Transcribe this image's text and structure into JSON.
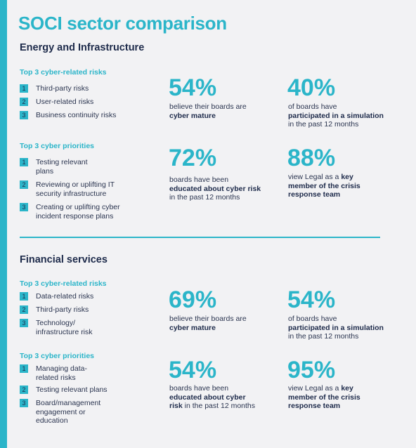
{
  "title": "SOCI sector comparison",
  "sections": [
    {
      "name": "Energy and Infrastructure",
      "risks_heading": "Top 3 cyber-related risks",
      "risks": [
        {
          "num": "1",
          "text": "Third-party risks"
        },
        {
          "num": "2",
          "text": "User-related risks"
        },
        {
          "num": "3",
          "text": "Business continuity risks"
        }
      ],
      "priorities_heading": "Top 3 cyber priorities",
      "priorities": [
        {
          "num": "1",
          "text": "Testing relevant plans"
        },
        {
          "num": "2",
          "text": "Reviewing or uplifting IT security infrastructure"
        },
        {
          "num": "3",
          "text": "Creating or uplifting cyber incident response plans"
        }
      ],
      "stats": [
        {
          "value": "54%",
          "pre": "believe their boards are",
          "bold": "cyber mature",
          "post": ""
        },
        {
          "value": "40%",
          "pre": "of boards have",
          "bold": "participated in a simulation",
          "post": "in the past 12 months"
        },
        {
          "value": "72%",
          "pre": "boards have been",
          "bold": "educated about cyber risk",
          "post": "in the past 12 months"
        },
        {
          "value": "88%",
          "pre": "view Legal as a",
          "bold": "key member of the crisis response team",
          "post": ""
        }
      ]
    },
    {
      "name": "Financial services",
      "risks_heading": "Top 3 cyber-related risks",
      "risks": [
        {
          "num": "1",
          "text": "Data-related risks"
        },
        {
          "num": "2",
          "text": "Third-party risks"
        },
        {
          "num": "3",
          "text": "Technology/ infrastructure risk"
        }
      ],
      "priorities_heading": "Top 3 cyber priorities",
      "priorities": [
        {
          "num": "1",
          "text": "Managing data-related risks"
        },
        {
          "num": "2",
          "text": "Testing relevant plans"
        },
        {
          "num": "3",
          "text": "Board/management engagement or education"
        }
      ],
      "stats": [
        {
          "value": "69%",
          "pre": "believe their boards are",
          "bold": "cyber mature",
          "post": ""
        },
        {
          "value": "54%",
          "pre": "of boards have",
          "bold": "participated in a simulation",
          "post": "in the past 12 months"
        },
        {
          "value": "54%",
          "pre": "boards have been",
          "bold": "educated about cyber risk",
          "post": "in the past 12 months"
        },
        {
          "value": "95%",
          "pre": "view Legal as a",
          "bold": "key member of the crisis response team",
          "post": ""
        }
      ]
    }
  ],
  "colors": {
    "accent": "#2bb5c9",
    "navy": "#1d2a4a",
    "background": "#f2f2f4"
  }
}
